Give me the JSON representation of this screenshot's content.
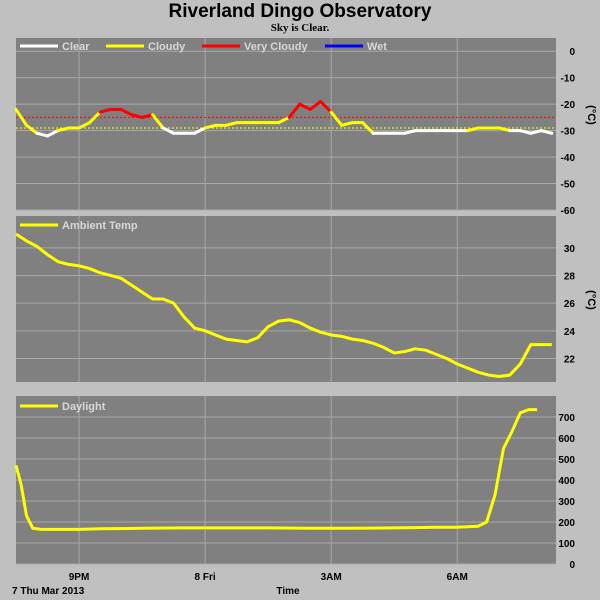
{
  "title": "Riverland Dingo Observatory",
  "subtitle": "Sky is Clear.",
  "colors": {
    "panel_bg": "#808080",
    "grid": "#a8a8a8",
    "clear": "#ffffff",
    "cloudy": "#ffff00",
    "very_cloudy": "#ff0000",
    "wet": "#0000ff",
    "limit_red": "#ff0000",
    "limit_yellow": "#ffff00"
  },
  "chart_data": [
    {
      "type": "line",
      "name": "sky",
      "legend": [
        "Clear",
        "Cloudy",
        "Very Cloudy",
        "Wet"
      ],
      "ylabel": "(°C)",
      "ylim": [
        -60,
        5
      ],
      "yticks": [
        0,
        -10,
        -20,
        -30,
        -40,
        -50,
        -60
      ],
      "grid": true,
      "legend_placement": "top-left",
      "thresholds": {
        "very_cloudy": -25,
        "cloudy": -29
      },
      "x_hours": [
        0,
        0.25,
        0.5,
        0.75,
        1,
        1.25,
        1.5,
        1.75,
        2,
        2.25,
        2.5,
        2.75,
        3,
        3.25,
        3.5,
        3.75,
        4,
        4.25,
        4.5,
        4.75,
        5,
        5.25,
        5.5,
        5.75,
        6,
        6.25,
        6.5,
        6.75,
        7,
        7.25,
        7.5,
        7.75,
        8,
        8.25,
        8.5,
        8.75,
        9,
        9.25,
        9.5,
        9.75,
        10,
        10.25,
        10.5,
        10.75,
        11,
        11.25,
        11.5,
        11.75,
        12,
        12.25,
        12.5,
        12.75
      ],
      "values": [
        -22,
        -28,
        -31,
        -32,
        -30,
        -29,
        -29,
        -27,
        -23,
        -22,
        -22,
        -24,
        -25,
        -24,
        -29,
        -31,
        -31,
        -31,
        -29,
        -28,
        -28,
        -27,
        -27,
        -27,
        -27,
        -27,
        -25,
        -20,
        -22,
        -19,
        -23,
        -28,
        -27,
        -27,
        -31,
        -31,
        -31,
        -31,
        -30,
        -30,
        -30,
        -30,
        -30,
        -30,
        -29,
        -29,
        -29,
        -30,
        -30,
        -31,
        -30,
        -31
      ]
    },
    {
      "type": "line",
      "name": "ambient",
      "legend": [
        "Ambient Temp"
      ],
      "ylim": [
        20.3,
        32.3
      ],
      "yticks": [
        30,
        28,
        26,
        24,
        22
      ],
      "grid": true,
      "legend_placement": "top-left",
      "x_hours": [
        0,
        0.25,
        0.5,
        0.75,
        1,
        1.25,
        1.5,
        1.75,
        2,
        2.25,
        2.5,
        2.75,
        3,
        3.25,
        3.5,
        3.75,
        4,
        4.25,
        4.5,
        4.75,
        5,
        5.25,
        5.5,
        5.75,
        6,
        6.25,
        6.5,
        6.75,
        7,
        7.25,
        7.5,
        7.75,
        8,
        8.25,
        8.5,
        8.75,
        9,
        9.25,
        9.5,
        9.75,
        10,
        10.25,
        10.5,
        10.75,
        11,
        11.25,
        11.5,
        11.75,
        12,
        12.25,
        12.5,
        12.75
      ],
      "values": [
        31.0,
        30.5,
        30.1,
        29.5,
        29.0,
        28.8,
        28.7,
        28.5,
        28.2,
        28.0,
        27.8,
        27.3,
        26.8,
        26.3,
        26.3,
        26.0,
        25.0,
        24.2,
        24.0,
        23.7,
        23.4,
        23.3,
        23.2,
        23.5,
        24.3,
        24.7,
        24.8,
        24.6,
        24.2,
        23.9,
        23.7,
        23.6,
        23.4,
        23.3,
        23.1,
        22.8,
        22.4,
        22.5,
        22.7,
        22.6,
        22.3,
        22.0,
        21.6,
        21.3,
        21.0,
        20.8,
        20.7,
        20.8,
        21.6,
        23.0,
        23.0,
        23.0
      ]
    },
    {
      "type": "line",
      "name": "daylight",
      "legend": [
        "Daylight"
      ],
      "ylim": [
        0,
        800
      ],
      "yticks": [
        700,
        600,
        500,
        400,
        300,
        200,
        100,
        0
      ],
      "grid": true,
      "legend_placement": "top-left",
      "x_hours": [
        0,
        0.12,
        0.25,
        0.4,
        0.6,
        1,
        1.5,
        2,
        3,
        4,
        5,
        6,
        7,
        8,
        9,
        9.5,
        10,
        10.5,
        10.8,
        11.0,
        11.2,
        11.4,
        11.6,
        11.8,
        12.0,
        12.2,
        12.4
      ],
      "values": [
        470,
        380,
        230,
        170,
        165,
        165,
        165,
        168,
        170,
        172,
        172,
        172,
        170,
        170,
        172,
        173,
        175,
        175,
        178,
        180,
        200,
        330,
        550,
        630,
        720,
        735,
        735
      ]
    }
  ],
  "x_axis": {
    "hours_range": [
      0,
      12.85
    ],
    "ticks": [
      {
        "label": "9PM",
        "hours": 1.5
      },
      {
        "label": "8 Fri",
        "hours": 4.5
      },
      {
        "label": "3AM",
        "hours": 7.5
      },
      {
        "label": "6AM",
        "hours": 10.5
      }
    ],
    "start_label": "7 Thu Mar 2013",
    "title": "Time"
  }
}
